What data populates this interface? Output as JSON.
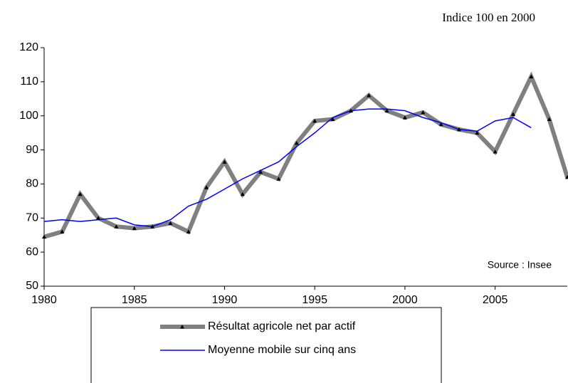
{
  "chart_data": {
    "type": "line",
    "subtitle": "Indice 100 en 2000",
    "source": "Source : Insee",
    "x": [
      1980,
      1981,
      1982,
      1983,
      1984,
      1985,
      1986,
      1987,
      1988,
      1989,
      1990,
      1991,
      1992,
      1993,
      1994,
      1995,
      1996,
      1997,
      1998,
      1999,
      2000,
      2001,
      2002,
      2003,
      2004,
      2005,
      2006,
      2007,
      2008,
      2009
    ],
    "series": [
      {
        "name": "Résultat agricole net par actif",
        "color": "#808080",
        "values": [
          64.5,
          66,
          77,
          70,
          67.5,
          67,
          67.5,
          68.5,
          66,
          79,
          86.5,
          77,
          83.5,
          81.5,
          92,
          98.5,
          99,
          101.5,
          106,
          101.5,
          99.5,
          101,
          97.5,
          96,
          95,
          89.5,
          100.5,
          111.5,
          99,
          82
        ]
      },
      {
        "name": "Moyenne mobile sur cinq ans",
        "color": "#0000ff",
        "values": [
          69,
          69.5,
          69,
          69.5,
          70,
          68,
          67.5,
          69.5,
          73.5,
          75.5,
          78.5,
          81.5,
          84,
          86.5,
          91,
          95,
          99.5,
          101.5,
          102,
          102,
          101.5,
          99.5,
          98,
          96,
          95.5,
          98.5,
          99.5,
          96.5,
          null,
          null
        ]
      }
    ],
    "xlim": [
      1980,
      2009
    ],
    "xticks": [
      1980,
      1985,
      1990,
      1995,
      2000,
      2005
    ],
    "ylim": [
      50,
      120
    ],
    "yticks": [
      50,
      60,
      70,
      80,
      90,
      100,
      110,
      120
    ],
    "grid": false
  }
}
